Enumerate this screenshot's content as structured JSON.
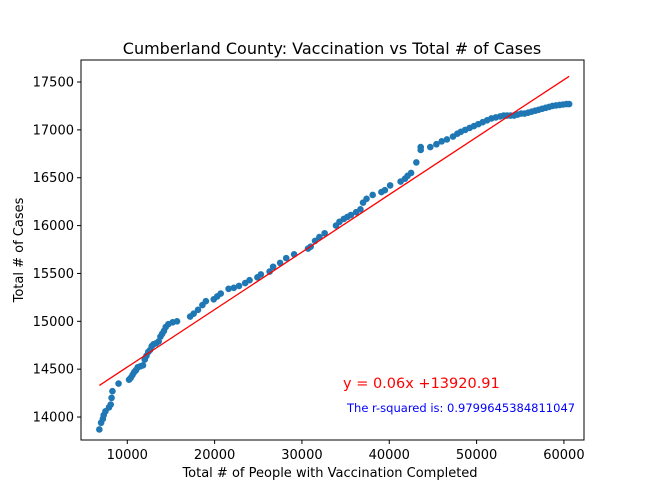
{
  "chart_data": {
    "type": "scatter",
    "title": "Cumberland County: Vaccination vs Total # of Cases",
    "xlabel": "Total # of People with Vaccination Completed",
    "ylabel": "Total # of Cases",
    "xlim": [
      4700,
      62300
    ],
    "ylim": [
      13760,
      17730
    ],
    "xticks": [
      10000,
      20000,
      30000,
      40000,
      50000,
      60000
    ],
    "yticks": [
      14000,
      14500,
      15000,
      15500,
      16000,
      16500,
      17000,
      17500
    ],
    "grid": false,
    "point_color": "#1f77b4",
    "line_color": "#ff0000",
    "equation_color": "#ff0000",
    "r2_color": "#0000ff",
    "series": [
      {
        "values": [
          [
            6800,
            13870
          ],
          [
            7000,
            13940
          ],
          [
            7200,
            13980
          ],
          [
            7300,
            14020
          ],
          [
            7500,
            14060
          ],
          [
            7900,
            14100
          ],
          [
            8100,
            14130
          ],
          [
            8200,
            14200
          ],
          [
            8300,
            14270
          ],
          [
            9000,
            14350
          ],
          [
            10200,
            14390
          ],
          [
            10400,
            14410
          ],
          [
            10600,
            14440
          ],
          [
            10800,
            14470
          ],
          [
            11000,
            14490
          ],
          [
            11200,
            14520
          ],
          [
            11500,
            14530
          ],
          [
            11800,
            14540
          ],
          [
            12000,
            14600
          ],
          [
            12200,
            14640
          ],
          [
            12400,
            14680
          ],
          [
            12600,
            14700
          ],
          [
            12800,
            14740
          ],
          [
            13000,
            14760
          ],
          [
            13300,
            14770
          ],
          [
            13600,
            14790
          ],
          [
            13800,
            14840
          ],
          [
            14000,
            14870
          ],
          [
            14200,
            14900
          ],
          [
            14400,
            14940
          ],
          [
            14700,
            14970
          ],
          [
            15200,
            14990
          ],
          [
            15700,
            15000
          ],
          [
            17200,
            15050
          ],
          [
            17600,
            15080
          ],
          [
            18100,
            15120
          ],
          [
            18600,
            15170
          ],
          [
            19000,
            15210
          ],
          [
            19900,
            15230
          ],
          [
            20300,
            15260
          ],
          [
            20700,
            15290
          ],
          [
            21600,
            15340
          ],
          [
            22200,
            15350
          ],
          [
            22800,
            15370
          ],
          [
            23500,
            15400
          ],
          [
            24000,
            15430
          ],
          [
            24900,
            15460
          ],
          [
            25300,
            15490
          ],
          [
            26300,
            15520
          ],
          [
            26700,
            15570
          ],
          [
            27500,
            15610
          ],
          [
            28200,
            15660
          ],
          [
            29100,
            15700
          ],
          [
            30700,
            15760
          ],
          [
            31000,
            15780
          ],
          [
            31500,
            15840
          ],
          [
            32000,
            15880
          ],
          [
            32600,
            15920
          ],
          [
            33900,
            16000
          ],
          [
            34300,
            16040
          ],
          [
            34800,
            16070
          ],
          [
            35200,
            16090
          ],
          [
            35600,
            16110
          ],
          [
            36200,
            16140
          ],
          [
            36700,
            16170
          ],
          [
            37000,
            16240
          ],
          [
            37400,
            16280
          ],
          [
            38100,
            16320
          ],
          [
            39100,
            16350
          ],
          [
            39500,
            16370
          ],
          [
            40100,
            16420
          ],
          [
            41300,
            16460
          ],
          [
            41800,
            16490
          ],
          [
            42100,
            16520
          ],
          [
            42500,
            16550
          ],
          [
            43100,
            16660
          ],
          [
            43600,
            16790
          ],
          [
            43600,
            16820
          ],
          [
            44700,
            16820
          ],
          [
            45400,
            16850
          ],
          [
            46000,
            16880
          ],
          [
            46600,
            16900
          ],
          [
            47300,
            16930
          ],
          [
            47800,
            16960
          ],
          [
            48200,
            16980
          ],
          [
            48700,
            17000
          ],
          [
            49200,
            17020
          ],
          [
            49700,
            17040
          ],
          [
            50200,
            17060
          ],
          [
            50700,
            17080
          ],
          [
            51200,
            17100
          ],
          [
            51700,
            17120
          ],
          [
            52200,
            17130
          ],
          [
            52700,
            17140
          ],
          [
            53100,
            17150
          ],
          [
            53500,
            17150
          ],
          [
            53900,
            17150
          ],
          [
            54300,
            17150
          ],
          [
            54700,
            17160
          ],
          [
            55100,
            17170
          ],
          [
            55500,
            17170
          ],
          [
            55900,
            17180
          ],
          [
            56300,
            17190
          ],
          [
            56700,
            17200
          ],
          [
            57100,
            17210
          ],
          [
            57500,
            17220
          ],
          [
            57900,
            17230
          ],
          [
            58300,
            17240
          ],
          [
            58700,
            17250
          ],
          [
            59100,
            17255
          ],
          [
            59500,
            17260
          ],
          [
            59900,
            17265
          ],
          [
            60300,
            17270
          ],
          [
            60600,
            17270
          ]
        ]
      }
    ],
    "regression": {
      "x": [
        6800,
        60600
      ],
      "y": [
        14330,
        17560
      ],
      "equation": "y = 0.06x +13920.91",
      "r_squared_text": "The r-squared is: 0.9799645384811047"
    }
  }
}
